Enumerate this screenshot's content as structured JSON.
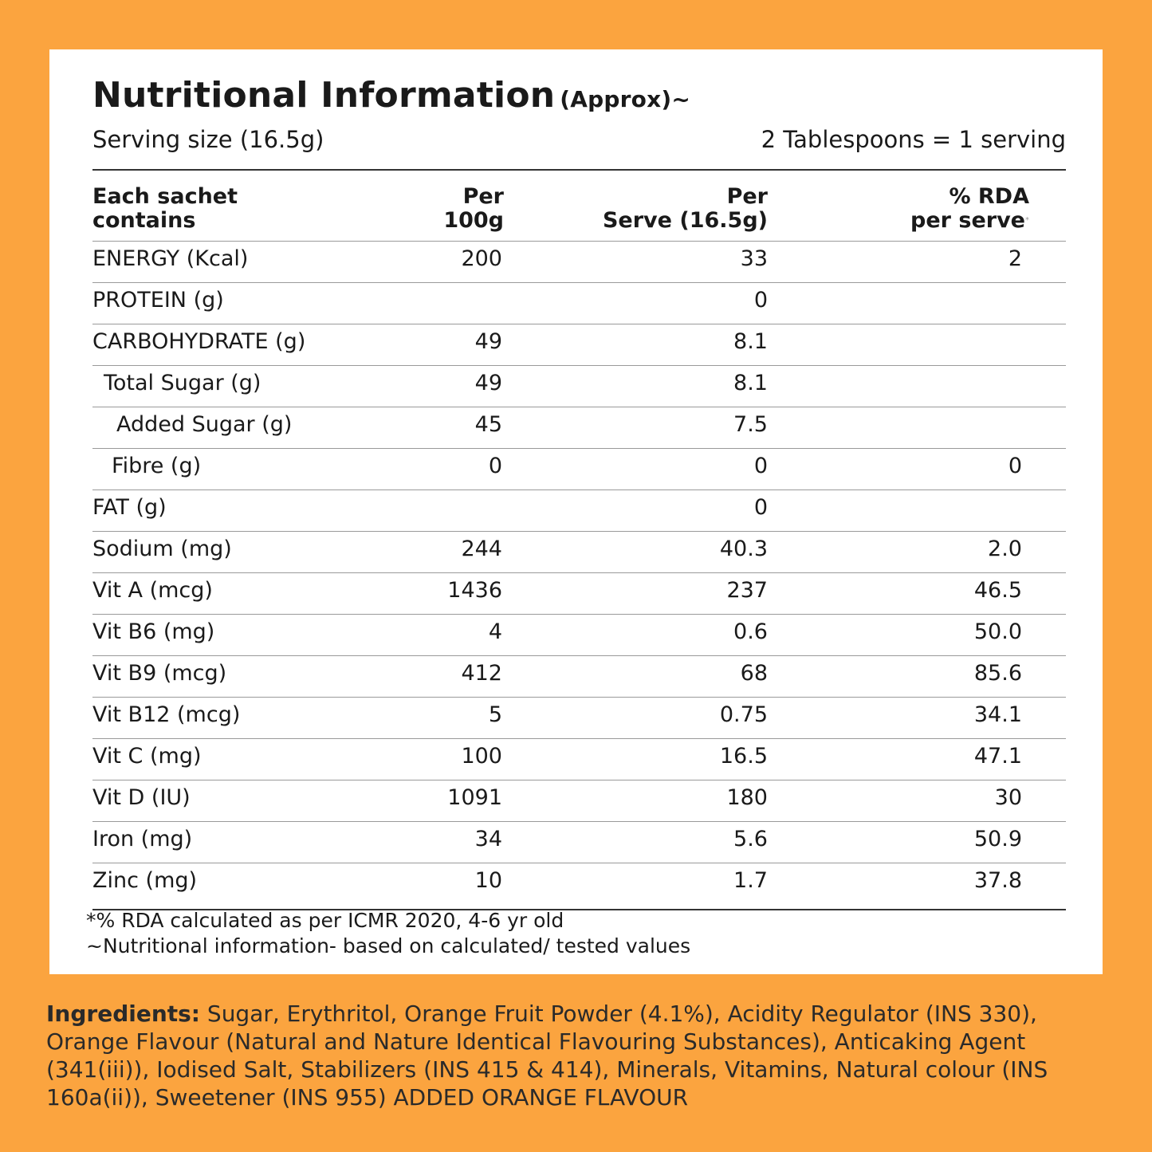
{
  "title": "Nutritional Information",
  "title_suffix": "(Approx)~",
  "serving_size": "Serving size (16.5g)",
  "serving_note": "2 Tablespoons = 1 serving",
  "columns": {
    "c1_line1": "Each sachet",
    "c1_line2": "contains",
    "c2_line1": "Per",
    "c2_line2": "100g",
    "c3_line1": "Per",
    "c3_line2": "Serve (16.5g)",
    "c4_line1": "% RDA",
    "c4_line2": "per serve",
    "c4_mark": "*"
  },
  "rows": [
    {
      "name": "ENERGY (Kcal)",
      "per100": "200",
      "perServe": "33",
      "rda": "2"
    },
    {
      "name": "PROTEIN (g)",
      "per100": "",
      "perServe": "0",
      "rda": ""
    },
    {
      "name": "CARBOHYDRATE (g)",
      "per100": "49",
      "perServe": "8.1",
      "rda": ""
    },
    {
      "name": "Total Sugar (g)",
      "per100": "49",
      "perServe": "8.1",
      "rda": ""
    },
    {
      "name": "Added Sugar (g)",
      "per100": "45",
      "perServe": "7.5",
      "rda": ""
    },
    {
      "name": "Fibre (g)",
      "per100": "0",
      "perServe": "0",
      "rda": "0"
    },
    {
      "name": "FAT (g)",
      "per100": "",
      "perServe": "0",
      "rda": ""
    },
    {
      "name": "Sodium (mg)",
      "per100": "244",
      "perServe": "40.3",
      "rda": "2.0"
    },
    {
      "name": "Vit A (mcg)",
      "per100": "1436",
      "perServe": "237",
      "rda": "46.5"
    },
    {
      "name": "Vit B6 (mg)",
      "per100": "4",
      "perServe": "0.6",
      "rda": "50.0"
    },
    {
      "name": "Vit B9 (mcg)",
      "per100": "412",
      "perServe": "68",
      "rda": "85.6"
    },
    {
      "name": "Vit B12 (mcg)",
      "per100": "5",
      "perServe": "0.75",
      "rda": "34.1"
    },
    {
      "name": "Vit C (mg)",
      "per100": "100",
      "perServe": "16.5",
      "rda": "47.1"
    },
    {
      "name": "Vit D (IU)",
      "per100": "1091",
      "perServe": "180",
      "rda": "30"
    },
    {
      "name": "Iron (mg)",
      "per100": "34",
      "perServe": "5.6",
      "rda": "50.9"
    },
    {
      "name": "Zinc (mg)",
      "per100": "10",
      "perServe": "1.7",
      "rda": "37.8"
    }
  ],
  "footnotes": {
    "rda": "*% RDA calculated as per ICMR 2020, 4-6 yr old",
    "basis": "~Nutritional information- based on calculated/ tested values"
  },
  "ingredients": {
    "label": "Ingredients:",
    "text": " Sugar, Erythritol, Orange Fruit Powder (4.1%), Acidity Regulator (INS 330), Orange Flavour (Natural and Nature Identical Flavouring Substances), Anticaking Agent (341(iii)), Iodised Salt, Stabilizers (INS 415 & 414), Minerals, Vitamins, Natural colour (INS 160a(ii)), Sweetener (INS 955) ADDED ORANGE FLAVOUR"
  },
  "colors": {
    "background": "#FBA43F",
    "card": "#FFFFFF",
    "text": "#1A1A1A"
  }
}
